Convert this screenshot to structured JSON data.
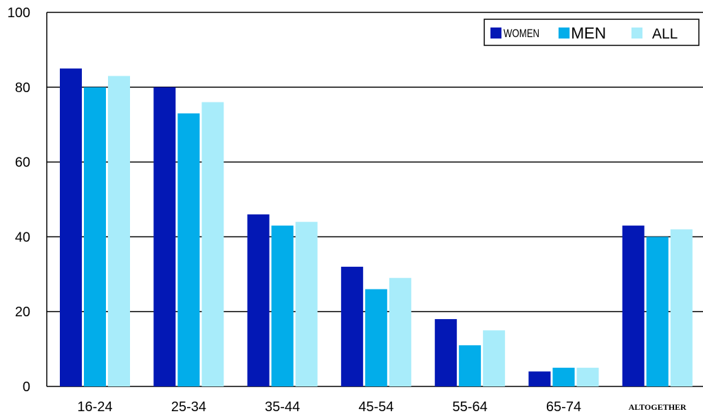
{
  "chart_data": {
    "type": "bar",
    "title": "",
    "xlabel": "",
    "ylabel": "",
    "ylim": [
      0,
      100
    ],
    "yticks": [
      0,
      20,
      40,
      60,
      80,
      100
    ],
    "grid": true,
    "legend_position": "top-right",
    "categories": [
      "16-24",
      "25-34",
      "35-44",
      "45-54",
      "55-64",
      "65-74",
      "ALTOGETHER"
    ],
    "series": [
      {
        "name": "WOMEN",
        "color": "#0318B5",
        "values": [
          85,
          80,
          46,
          32,
          18,
          4,
          43
        ]
      },
      {
        "name": "MEN",
        "color": "#02ADEA",
        "values": [
          80,
          73,
          43,
          26,
          11,
          5,
          40
        ]
      },
      {
        "name": "ALL",
        "color": "#A8ECFA",
        "values": [
          83,
          76,
          44,
          29,
          15,
          5,
          42
        ]
      }
    ]
  }
}
